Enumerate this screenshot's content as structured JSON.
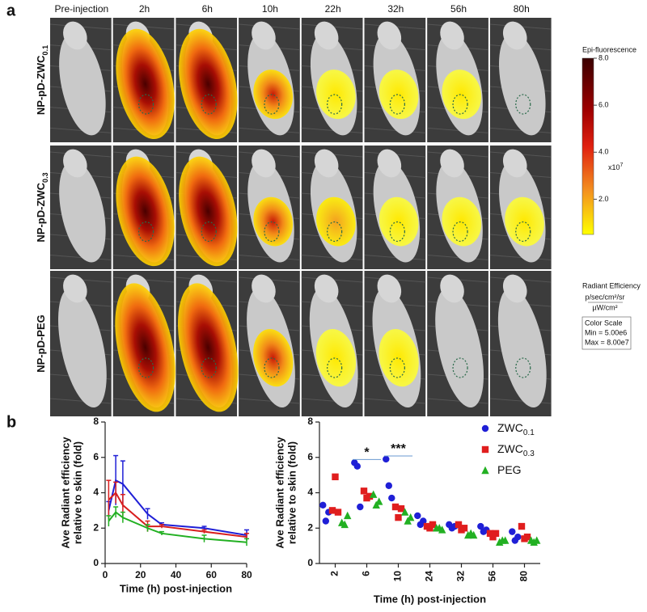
{
  "panel_a": {
    "label": "a",
    "columns": [
      "Pre-injection",
      "2h",
      "6h",
      "10h",
      "22h",
      "32h",
      "56h",
      "80h"
    ],
    "rows": [
      {
        "text": "NP-pD-ZWC",
        "sub": "0.1"
      },
      {
        "text": "NP-pD-ZWC",
        "sub": "0.3"
      },
      {
        "text": "NP-pD-PEG"
      }
    ],
    "colorbar": {
      "title": "Epi-fluorescence",
      "clim": [
        0.5,
        8.0
      ],
      "ticks": [
        {
          "value": 2,
          "label": "2.0"
        },
        {
          "value": 4,
          "label": "4.0"
        },
        {
          "value": 6,
          "label": "6.0"
        },
        {
          "value": 8,
          "label": "8.0"
        }
      ],
      "multiplier": "x10",
      "multiplier_exp": "7",
      "unit_title": "Radiant Efficiency",
      "unit_num": "p/sec/cm²/sr",
      "unit_den": "µW/cm²",
      "scale_title": "Color Scale",
      "scale_min": "Min = 5.00e6",
      "scale_max": "Max = 8.00e7"
    }
  },
  "panel_b": {
    "label": "b"
  },
  "chart_data": [
    {
      "type": "line",
      "x_label": "Time (h) post-injection",
      "y_label": [
        "Ave Radiant efficiency",
        "relative to skin (fold)"
      ],
      "x": [
        2,
        6,
        10,
        24,
        32,
        56,
        80
      ],
      "xlim": [
        0,
        80
      ],
      "xticks": [
        0,
        20,
        40,
        60,
        80
      ],
      "ylim": [
        0,
        8
      ],
      "yticks": [
        0,
        2,
        4,
        6,
        8
      ],
      "series": [
        {
          "color": "#1f1fd6",
          "values": [
            3.0,
            4.7,
            4.5,
            2.8,
            2.2,
            2.0,
            1.6
          ],
          "errors": [
            0.5,
            1.4,
            1.3,
            0.3,
            0.1,
            0.1,
            0.3
          ]
        },
        {
          "color": "#d81e1e",
          "values": [
            3.6,
            4.0,
            3.3,
            2.1,
            2.1,
            1.8,
            1.5
          ],
          "errors": [
            1.1,
            0.6,
            0.6,
            0.3,
            0.1,
            0.1,
            0.2
          ]
        },
        {
          "color": "#22b022",
          "values": [
            2.4,
            2.9,
            2.6,
            2.0,
            1.7,
            1.4,
            1.2
          ],
          "errors": [
            0.3,
            0.3,
            0.3,
            0.2,
            0.1,
            0.2,
            0.2
          ]
        }
      ]
    },
    {
      "type": "strip",
      "x_label": "Time (h) post-injection",
      "y_label": [
        "Ave Radiant efficiency",
        "relative to skin (fold)"
      ],
      "categories": [
        "2",
        "6",
        "10",
        "24",
        "32",
        "56",
        "80"
      ],
      "ylim": [
        0,
        8
      ],
      "yticks": [
        0,
        2,
        4,
        6,
        8
      ],
      "series": [
        {
          "name": "ZWC",
          "name_sub": "0.1",
          "color": "#1f1fd6",
          "marker": "circle",
          "values": [
            [
              3.3,
              2.4,
              2.9
            ],
            [
              5.7,
              5.5,
              3.2
            ],
            [
              5.9,
              4.4,
              3.7
            ],
            [
              2.7,
              2.2,
              2.4
            ],
            [
              2.2,
              2.0,
              2.1
            ],
            [
              2.1,
              1.8,
              1.9
            ],
            [
              1.8,
              1.3,
              1.5
            ]
          ]
        },
        {
          "name": "ZWC",
          "name_sub": "0.3",
          "color": "#e01e1e",
          "marker": "square",
          "values": [
            [
              3.0,
              4.9,
              2.9
            ],
            [
              4.1,
              3.7,
              3.8
            ],
            [
              3.2,
              2.6,
              3.1
            ],
            [
              2.1,
              2.0,
              2.2
            ],
            [
              2.2,
              1.9,
              2.0
            ],
            [
              1.7,
              1.5,
              1.7
            ],
            [
              2.1,
              1.4,
              1.5
            ]
          ]
        },
        {
          "name": "PEG",
          "color": "#22b022",
          "marker": "triangle",
          "values": [
            [
              2.3,
              2.2,
              2.7
            ],
            [
              3.9,
              3.3,
              3.5
            ],
            [
              2.9,
              2.4,
              2.6
            ],
            [
              2.0,
              2.0,
              1.9
            ],
            [
              1.6,
              1.7,
              1.6
            ],
            [
              1.2,
              1.3,
              1.3
            ],
            [
              1.3,
              1.2,
              1.3
            ]
          ]
        }
      ],
      "annotations": [
        {
          "text": "*",
          "category": "6"
        },
        {
          "text": "***",
          "category": "10"
        }
      ]
    }
  ]
}
